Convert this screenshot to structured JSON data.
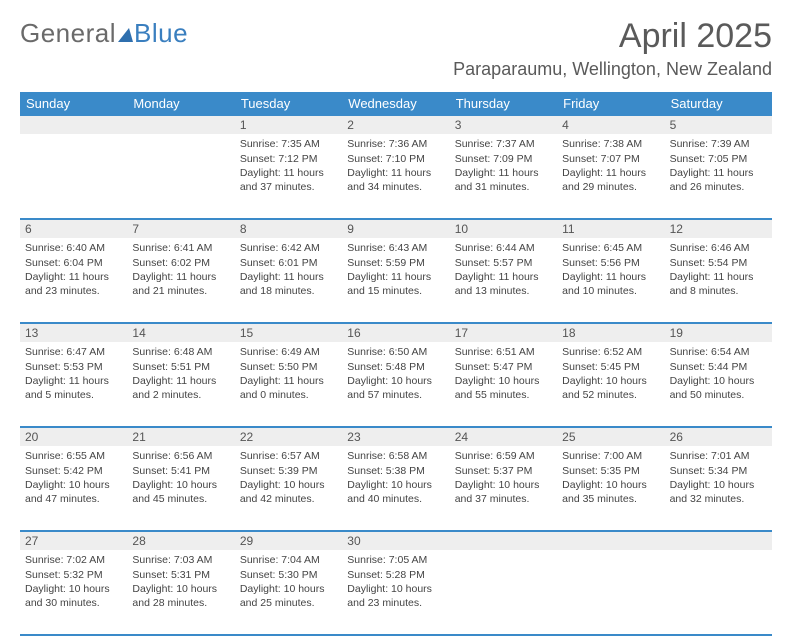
{
  "brand": {
    "part1": "General",
    "part2": "Blue"
  },
  "title": "April 2025",
  "location": "Paraparaumu, Wellington, New Zealand",
  "colors": {
    "header_bg": "#3a8ac9",
    "header_text": "#ffffff",
    "daynum_bg": "#eeeeee",
    "rule": "#3a8ac9",
    "body_text": "#444444",
    "title_text": "#5a5a5a"
  },
  "day_labels": [
    "Sunday",
    "Monday",
    "Tuesday",
    "Wednesday",
    "Thursday",
    "Friday",
    "Saturday"
  ],
  "weeks": [
    {
      "nums": [
        "",
        "",
        "1",
        "2",
        "3",
        "4",
        "5"
      ],
      "cells": [
        null,
        null,
        {
          "sunrise": "Sunrise: 7:35 AM",
          "sunset": "Sunset: 7:12 PM",
          "day1": "Daylight: 11 hours",
          "day2": "and 37 minutes."
        },
        {
          "sunrise": "Sunrise: 7:36 AM",
          "sunset": "Sunset: 7:10 PM",
          "day1": "Daylight: 11 hours",
          "day2": "and 34 minutes."
        },
        {
          "sunrise": "Sunrise: 7:37 AM",
          "sunset": "Sunset: 7:09 PM",
          "day1": "Daylight: 11 hours",
          "day2": "and 31 minutes."
        },
        {
          "sunrise": "Sunrise: 7:38 AM",
          "sunset": "Sunset: 7:07 PM",
          "day1": "Daylight: 11 hours",
          "day2": "and 29 minutes."
        },
        {
          "sunrise": "Sunrise: 7:39 AM",
          "sunset": "Sunset: 7:05 PM",
          "day1": "Daylight: 11 hours",
          "day2": "and 26 minutes."
        }
      ]
    },
    {
      "nums": [
        "6",
        "7",
        "8",
        "9",
        "10",
        "11",
        "12"
      ],
      "cells": [
        {
          "sunrise": "Sunrise: 6:40 AM",
          "sunset": "Sunset: 6:04 PM",
          "day1": "Daylight: 11 hours",
          "day2": "and 23 minutes."
        },
        {
          "sunrise": "Sunrise: 6:41 AM",
          "sunset": "Sunset: 6:02 PM",
          "day1": "Daylight: 11 hours",
          "day2": "and 21 minutes."
        },
        {
          "sunrise": "Sunrise: 6:42 AM",
          "sunset": "Sunset: 6:01 PM",
          "day1": "Daylight: 11 hours",
          "day2": "and 18 minutes."
        },
        {
          "sunrise": "Sunrise: 6:43 AM",
          "sunset": "Sunset: 5:59 PM",
          "day1": "Daylight: 11 hours",
          "day2": "and 15 minutes."
        },
        {
          "sunrise": "Sunrise: 6:44 AM",
          "sunset": "Sunset: 5:57 PM",
          "day1": "Daylight: 11 hours",
          "day2": "and 13 minutes."
        },
        {
          "sunrise": "Sunrise: 6:45 AM",
          "sunset": "Sunset: 5:56 PM",
          "day1": "Daylight: 11 hours",
          "day2": "and 10 minutes."
        },
        {
          "sunrise": "Sunrise: 6:46 AM",
          "sunset": "Sunset: 5:54 PM",
          "day1": "Daylight: 11 hours",
          "day2": "and 8 minutes."
        }
      ]
    },
    {
      "nums": [
        "13",
        "14",
        "15",
        "16",
        "17",
        "18",
        "19"
      ],
      "cells": [
        {
          "sunrise": "Sunrise: 6:47 AM",
          "sunset": "Sunset: 5:53 PM",
          "day1": "Daylight: 11 hours",
          "day2": "and 5 minutes."
        },
        {
          "sunrise": "Sunrise: 6:48 AM",
          "sunset": "Sunset: 5:51 PM",
          "day1": "Daylight: 11 hours",
          "day2": "and 2 minutes."
        },
        {
          "sunrise": "Sunrise: 6:49 AM",
          "sunset": "Sunset: 5:50 PM",
          "day1": "Daylight: 11 hours",
          "day2": "and 0 minutes."
        },
        {
          "sunrise": "Sunrise: 6:50 AM",
          "sunset": "Sunset: 5:48 PM",
          "day1": "Daylight: 10 hours",
          "day2": "and 57 minutes."
        },
        {
          "sunrise": "Sunrise: 6:51 AM",
          "sunset": "Sunset: 5:47 PM",
          "day1": "Daylight: 10 hours",
          "day2": "and 55 minutes."
        },
        {
          "sunrise": "Sunrise: 6:52 AM",
          "sunset": "Sunset: 5:45 PM",
          "day1": "Daylight: 10 hours",
          "day2": "and 52 minutes."
        },
        {
          "sunrise": "Sunrise: 6:54 AM",
          "sunset": "Sunset: 5:44 PM",
          "day1": "Daylight: 10 hours",
          "day2": "and 50 minutes."
        }
      ]
    },
    {
      "nums": [
        "20",
        "21",
        "22",
        "23",
        "24",
        "25",
        "26"
      ],
      "cells": [
        {
          "sunrise": "Sunrise: 6:55 AM",
          "sunset": "Sunset: 5:42 PM",
          "day1": "Daylight: 10 hours",
          "day2": "and 47 minutes."
        },
        {
          "sunrise": "Sunrise: 6:56 AM",
          "sunset": "Sunset: 5:41 PM",
          "day1": "Daylight: 10 hours",
          "day2": "and 45 minutes."
        },
        {
          "sunrise": "Sunrise: 6:57 AM",
          "sunset": "Sunset: 5:39 PM",
          "day1": "Daylight: 10 hours",
          "day2": "and 42 minutes."
        },
        {
          "sunrise": "Sunrise: 6:58 AM",
          "sunset": "Sunset: 5:38 PM",
          "day1": "Daylight: 10 hours",
          "day2": "and 40 minutes."
        },
        {
          "sunrise": "Sunrise: 6:59 AM",
          "sunset": "Sunset: 5:37 PM",
          "day1": "Daylight: 10 hours",
          "day2": "and 37 minutes."
        },
        {
          "sunrise": "Sunrise: 7:00 AM",
          "sunset": "Sunset: 5:35 PM",
          "day1": "Daylight: 10 hours",
          "day2": "and 35 minutes."
        },
        {
          "sunrise": "Sunrise: 7:01 AM",
          "sunset": "Sunset: 5:34 PM",
          "day1": "Daylight: 10 hours",
          "day2": "and 32 minutes."
        }
      ]
    },
    {
      "nums": [
        "27",
        "28",
        "29",
        "30",
        "",
        "",
        ""
      ],
      "cells": [
        {
          "sunrise": "Sunrise: 7:02 AM",
          "sunset": "Sunset: 5:32 PM",
          "day1": "Daylight: 10 hours",
          "day2": "and 30 minutes."
        },
        {
          "sunrise": "Sunrise: 7:03 AM",
          "sunset": "Sunset: 5:31 PM",
          "day1": "Daylight: 10 hours",
          "day2": "and 28 minutes."
        },
        {
          "sunrise": "Sunrise: 7:04 AM",
          "sunset": "Sunset: 5:30 PM",
          "day1": "Daylight: 10 hours",
          "day2": "and 25 minutes."
        },
        {
          "sunrise": "Sunrise: 7:05 AM",
          "sunset": "Sunset: 5:28 PM",
          "day1": "Daylight: 10 hours",
          "day2": "and 23 minutes."
        },
        null,
        null,
        null
      ]
    }
  ]
}
